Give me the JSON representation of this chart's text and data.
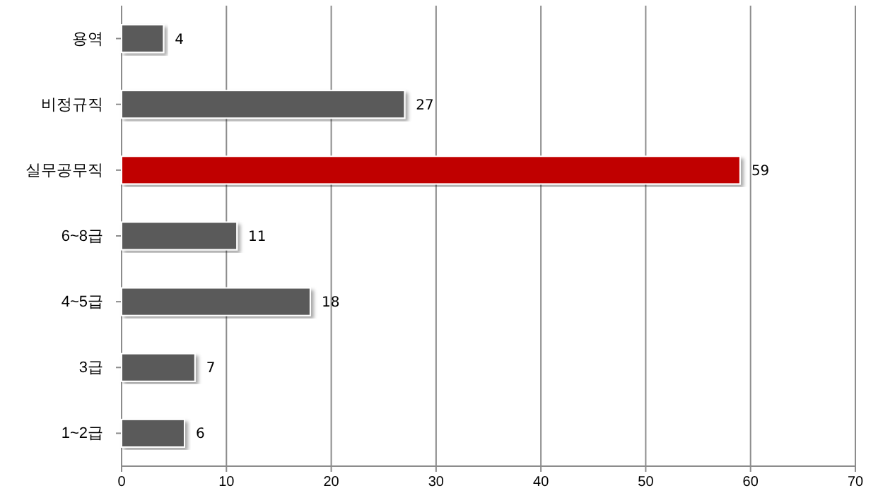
{
  "chart_data": {
    "type": "bar",
    "orientation": "horizontal",
    "categories": [
      "용역",
      "비정규직",
      "실무공무직",
      "6~8급",
      "4~5급",
      "3급",
      "1~2급"
    ],
    "values": [
      4,
      27,
      59,
      11,
      18,
      7,
      6
    ],
    "colors": [
      "#5a5a5a",
      "#5a5a5a",
      "#c00000",
      "#5a5a5a",
      "#5a5a5a",
      "#5a5a5a",
      "#5a5a5a"
    ],
    "xlim": [
      0,
      70
    ],
    "xticks": [
      0,
      10,
      20,
      30,
      40,
      50,
      60,
      70
    ],
    "grid": "x",
    "data_labels": true
  }
}
